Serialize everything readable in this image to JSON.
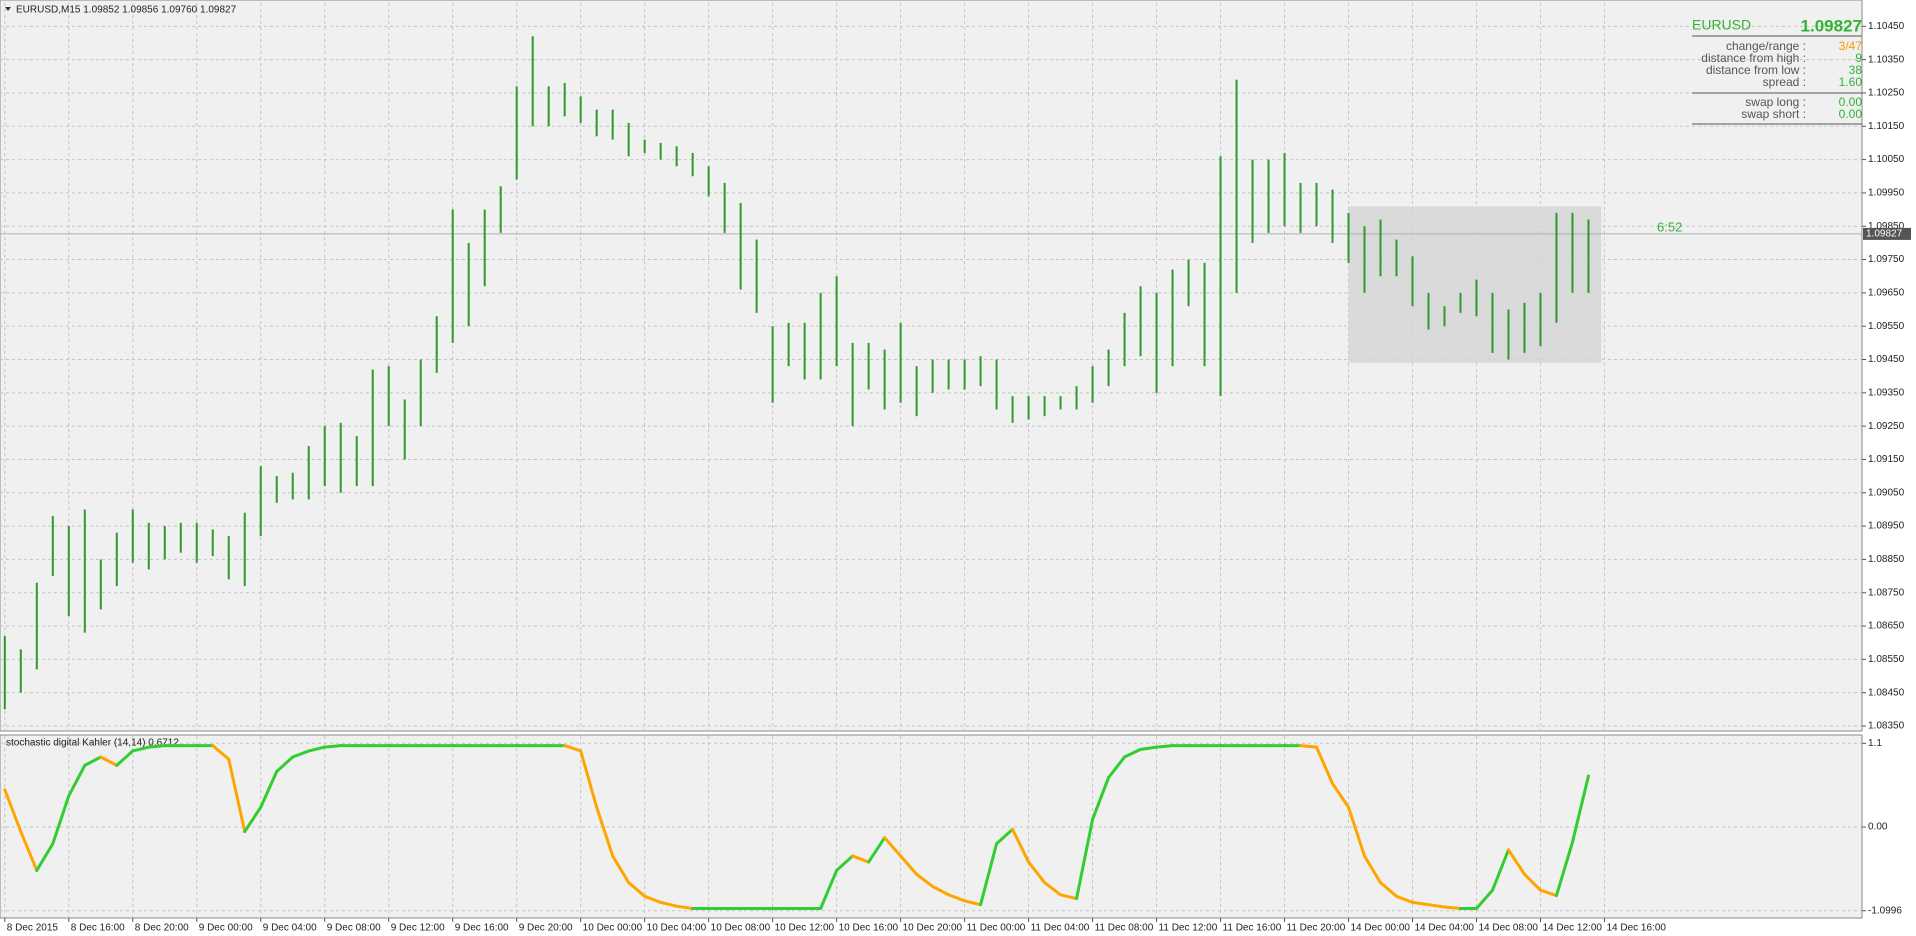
{
  "header": "EURUSD,M15  1.09852 1.09856 1.09760 1.09827",
  "info_panel": {
    "symbol": "EURUSD",
    "price": "1.09827",
    "rows": [
      [
        "change/range :",
        "3/47"
      ],
      [
        "distance from high :",
        "9"
      ],
      [
        "distance from low :",
        "38"
      ],
      [
        "spread :",
        "1.60"
      ]
    ],
    "swap_rows": [
      [
        "swap long :",
        "0.00"
      ],
      [
        "swap short :",
        "0.00"
      ]
    ]
  },
  "chart_data": [
    {
      "type": "range",
      "color": "#2e9a2e",
      "grid": true,
      "xlim": [
        -0.3,
        116.1
      ],
      "ylim": [
        1.08335,
        1.1052
      ],
      "current_price": 1.09827,
      "annotation": "6:52",
      "rectangle": {
        "x": [
          84,
          99.8
        ],
        "y": [
          1.0944,
          1.0991
        ]
      },
      "yticks": [
        {
          "value": 1.0835,
          "label": "1.08350"
        },
        {
          "value": 1.0845,
          "label": "1.08450"
        },
        {
          "value": 1.0855,
          "label": "1.08550"
        },
        {
          "value": 1.0865,
          "label": "1.08650"
        },
        {
          "value": 1.0875,
          "label": "1.08750"
        },
        {
          "value": 1.0885,
          "label": "1.08850"
        },
        {
          "value": 1.0895,
          "label": "1.08950"
        },
        {
          "value": 1.0905,
          "label": "1.09050"
        },
        {
          "value": 1.0915,
          "label": "1.09150"
        },
        {
          "value": 1.0925,
          "label": "1.09250"
        },
        {
          "value": 1.0935,
          "label": "1.09350"
        },
        {
          "value": 1.0945,
          "label": "1.09450"
        },
        {
          "value": 1.0955,
          "label": "1.09550"
        },
        {
          "value": 1.0965,
          "label": "1.09650"
        },
        {
          "value": 1.0975,
          "label": "1.09750"
        },
        {
          "value": 1.0985,
          "label": "1.09850"
        },
        {
          "value": 1.0995,
          "label": "1.09950"
        },
        {
          "value": 1.1005,
          "label": "1.10050"
        },
        {
          "value": 1.1015,
          "label": "1.10150"
        },
        {
          "value": 1.1025,
          "label": "1.10250"
        },
        {
          "value": 1.1035,
          "label": "1.10350"
        },
        {
          "value": 1.1045,
          "label": "1.10450"
        }
      ],
      "x": [
        0,
        1,
        2,
        3,
        4,
        5,
        6,
        7,
        8,
        9,
        10,
        11,
        12,
        13,
        14,
        15,
        16,
        17,
        18,
        19,
        20,
        21,
        22,
        23,
        24,
        25,
        26,
        27,
        28,
        29,
        30,
        31,
        32,
        33,
        34,
        35,
        36,
        37,
        38,
        39,
        40,
        41,
        42,
        43,
        44,
        45,
        46,
        47,
        48,
        49,
        50,
        51,
        52,
        53,
        54,
        55,
        56,
        57,
        58,
        59,
        60,
        61,
        62,
        63,
        64,
        65,
        66,
        67,
        68,
        69,
        70,
        71,
        72,
        73,
        74,
        75,
        76,
        77,
        78,
        79,
        80,
        81,
        82,
        83,
        84,
        85,
        86,
        87,
        88,
        89,
        90,
        91,
        92,
        93,
        94,
        95,
        96,
        97,
        98,
        99
      ],
      "high": [
        1.0862,
        1.0858,
        1.0878,
        1.0898,
        1.0895,
        1.09,
        1.0885,
        1.0893,
        1.09,
        1.0896,
        1.0895,
        1.0896,
        1.0896,
        1.0894,
        1.0892,
        1.0899,
        1.0913,
        1.091,
        1.0911,
        1.0919,
        1.0925,
        1.0926,
        1.0922,
        1.0942,
        1.0943,
        1.0933,
        1.0945,
        1.0958,
        1.099,
        1.098,
        1.099,
        1.0997,
        1.1027,
        1.1042,
        1.1027,
        1.1028,
        1.1024,
        1.102,
        1.102,
        1.1016,
        1.1011,
        1.101,
        1.1009,
        1.1007,
        1.1003,
        1.0998,
        1.0992,
        1.0981,
        1.0955,
        1.0956,
        1.0956,
        1.0965,
        1.097,
        1.095,
        1.095,
        1.0948,
        1.0956,
        1.0943,
        1.0945,
        1.0945,
        1.0945,
        1.0946,
        1.0945,
        1.0934,
        1.0934,
        1.0934,
        1.0934,
        1.0937,
        1.0943,
        1.0948,
        1.0959,
        1.0967,
        1.0965,
        1.0972,
        1.0975,
        1.0974,
        1.1006,
        1.1029,
        1.1005,
        1.1005,
        1.1007,
        1.0998,
        1.0998,
        1.0996,
        1.0989,
        1.0985,
        1.0987,
        1.0981,
        1.0976,
        1.0965,
        1.0961,
        1.0965,
        1.0969,
        1.0965,
        1.096,
        1.0962,
        1.0965,
        1.0989,
        1.0989,
        1.0987
      ],
      "low": [
        1.084,
        1.0845,
        1.0852,
        1.088,
        1.0868,
        1.0863,
        1.087,
        1.0877,
        1.0884,
        1.0882,
        1.0885,
        1.0887,
        1.0884,
        1.0886,
        1.0879,
        1.0877,
        1.0892,
        1.0902,
        1.0903,
        1.0903,
        1.0907,
        1.0905,
        1.0907,
        1.0907,
        1.0925,
        1.0915,
        1.0925,
        1.0941,
        1.095,
        1.0955,
        1.0967,
        1.0983,
        1.0999,
        1.1015,
        1.1015,
        1.1018,
        1.1016,
        1.1012,
        1.1011,
        1.1006,
        1.1007,
        1.1005,
        1.1003,
        1.1,
        1.0994,
        1.0983,
        1.0966,
        1.0959,
        1.0932,
        1.0943,
        1.0939,
        1.0939,
        1.0943,
        1.0925,
        1.0936,
        1.093,
        1.0932,
        1.0928,
        1.0935,
        1.0936,
        1.0936,
        1.0937,
        1.093,
        1.0926,
        1.0927,
        1.0928,
        1.093,
        1.093,
        1.0932,
        1.0937,
        1.0943,
        1.0946,
        1.0935,
        1.0943,
        1.0961,
        1.0943,
        1.0934,
        1.0965,
        1.098,
        1.0983,
        1.0985,
        1.0983,
        1.0985,
        1.098,
        1.0974,
        1.0965,
        1.097,
        1.097,
        1.0961,
        1.0954,
        1.0955,
        1.0959,
        1.0958,
        1.0947,
        1.0945,
        1.0947,
        1.0949,
        1.0956,
        1.0965,
        1.0965
      ]
    },
    {
      "type": "line",
      "title": "stochastic digital Kahler (14,14) 0.6712",
      "up_color": "#32cd32",
      "down_color": "#ffa500",
      "grid": true,
      "xlim": [
        -0.3,
        116.1
      ],
      "ylim": [
        -1.195,
        1.196
      ],
      "yticks": [
        -1.0996,
        {
          "value": 0,
          "label": "0.00"
        },
        1.1
      ],
      "xticks": [
        {
          "value": 0,
          "label": "8 Dec 2015"
        },
        {
          "value": 4,
          "label": "8 Dec 16:00"
        },
        {
          "value": 8,
          "label": "8 Dec 20:00"
        },
        {
          "value": 12,
          "label": "9 Dec 00:00"
        },
        {
          "value": 16,
          "label": "9 Dec 04:00"
        },
        {
          "value": 20,
          "label": "9 Dec 08:00"
        },
        {
          "value": 24,
          "label": "9 Dec 12:00"
        },
        {
          "value": 28,
          "label": "9 Dec 16:00"
        },
        {
          "value": 32,
          "label": "9 Dec 20:00"
        },
        {
          "value": 36,
          "label": "10 Dec 00:00"
        },
        {
          "value": 40,
          "label": "10 Dec 04:00"
        },
        {
          "value": 44,
          "label": "10 Dec 08:00"
        },
        {
          "value": 48,
          "label": "10 Dec 12:00"
        },
        {
          "value": 52,
          "label": "10 Dec 16:00"
        },
        {
          "value": 56,
          "label": "10 Dec 20:00"
        },
        {
          "value": 60,
          "label": "11 Dec 00:00"
        },
        {
          "value": 64,
          "label": "11 Dec 04:00"
        },
        {
          "value": 68,
          "label": "11 Dec 08:00"
        },
        {
          "value": 72,
          "label": "11 Dec 12:00"
        },
        {
          "value": 76,
          "label": "11 Dec 16:00"
        },
        {
          "value": 80,
          "label": "11 Dec 20:00"
        },
        {
          "value": 84,
          "label": "14 Dec 00:00"
        },
        {
          "value": 88,
          "label": "14 Dec 04:00"
        },
        {
          "value": 92,
          "label": "14 Dec 08:00"
        },
        {
          "value": 96,
          "label": "14 Dec 12:00"
        },
        {
          "value": 100,
          "label": "14 Dec 16:00"
        }
      ],
      "x": [
        0,
        1,
        2,
        3,
        4,
        5,
        6,
        7,
        8,
        9,
        10,
        11,
        12,
        13,
        14,
        15,
        16,
        17,
        18,
        19,
        20,
        21,
        22,
        23,
        24,
        25,
        26,
        27,
        28,
        29,
        30,
        31,
        32,
        33,
        34,
        35,
        36,
        37,
        38,
        39,
        40,
        41,
        42,
        43,
        44,
        45,
        46,
        47,
        48,
        49,
        50,
        51,
        52,
        53,
        54,
        55,
        56,
        57,
        58,
        59,
        60,
        61,
        62,
        63,
        64,
        65,
        66,
        67,
        68,
        69,
        70,
        71,
        72,
        73,
        74,
        75,
        76,
        77,
        78,
        79,
        80,
        81,
        82,
        83,
        84,
        85,
        86,
        87,
        88,
        89,
        90,
        91,
        92,
        93,
        94,
        95,
        96,
        97,
        98,
        99
      ],
      "values": [
        0.49,
        -0.06,
        -0.57,
        -0.22,
        0.41,
        0.81,
        0.92,
        0.81,
        1.0,
        1.05,
        1.07,
        1.07,
        1.07,
        1.07,
        0.89,
        -0.06,
        0.26,
        0.73,
        0.92,
        1.0,
        1.05,
        1.07,
        1.07,
        1.07,
        1.07,
        1.07,
        1.07,
        1.07,
        1.07,
        1.07,
        1.07,
        1.07,
        1.07,
        1.07,
        1.07,
        1.07,
        1.0,
        0.26,
        -0.38,
        -0.73,
        -0.91,
        -0.99,
        -1.04,
        -1.07,
        -1.07,
        -1.07,
        -1.07,
        -1.07,
        -1.07,
        -1.07,
        -1.07,
        -1.07,
        -0.57,
        -0.38,
        -0.46,
        -0.14,
        -0.38,
        -0.62,
        -0.78,
        -0.89,
        -0.97,
        -1.02,
        -0.22,
        -0.03,
        -0.46,
        -0.73,
        -0.89,
        -0.94,
        0.1,
        0.65,
        0.92,
        1.02,
        1.05,
        1.07,
        1.07,
        1.07,
        1.07,
        1.07,
        1.07,
        1.07,
        1.07,
        1.07,
        1.05,
        0.57,
        0.26,
        -0.38,
        -0.73,
        -0.91,
        -0.99,
        -1.02,
        -1.05,
        -1.07,
        -1.07,
        -0.83,
        -0.3,
        -0.62,
        -0.83,
        -0.9,
        -0.2,
        0.67
      ]
    }
  ]
}
